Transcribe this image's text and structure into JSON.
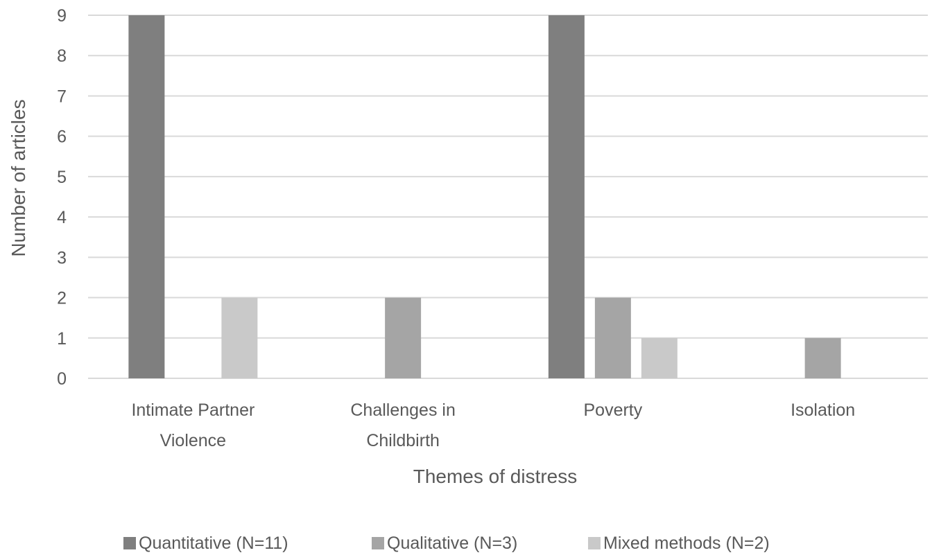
{
  "chart_data": {
    "type": "bar",
    "categories": [
      [
        "Intimate Partner",
        "Violence"
      ],
      [
        "Challenges in",
        "Childbirth"
      ],
      [
        "Poverty"
      ],
      [
        "Isolation"
      ]
    ],
    "series": [
      {
        "name": "Quantitative (N=11)",
        "values": [
          9,
          0,
          9,
          0
        ],
        "color": "#7f7f7f"
      },
      {
        "name": "Qualitative (N=3)",
        "values": [
          0,
          2,
          2,
          1
        ],
        "color": "#a5a5a5"
      },
      {
        "name": "Mixed methods (N=2)",
        "values": [
          2,
          0,
          1,
          0
        ],
        "color": "#c9c9c9"
      }
    ],
    "title": "",
    "xlabel": "Themes of distress",
    "ylabel": "Number of articles",
    "ylim": [
      0,
      9
    ],
    "yticks": [
      "0",
      "1",
      "2",
      "3",
      "4",
      "5",
      "6",
      "7",
      "8",
      "9"
    ],
    "grid": true,
    "gridline_color": "#d9d9d9",
    "legend_position": "bottom"
  }
}
